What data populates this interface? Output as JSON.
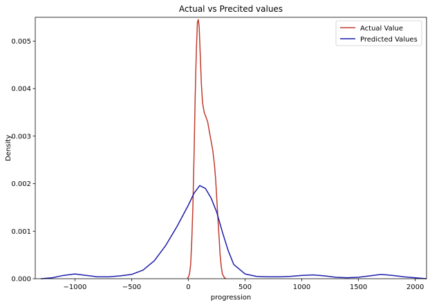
{
  "chart_data": {
    "type": "line",
    "title": "Actual vs Precited values",
    "xlabel": "progression",
    "ylabel": "Density",
    "xlim": [
      -1350,
      2100
    ],
    "ylim": [
      0,
      0.0055
    ],
    "xticks": [
      -1000,
      -500,
      0,
      500,
      1000,
      1500,
      2000
    ],
    "yticks": [
      0,
      0.001,
      0.002,
      0.003,
      0.004,
      0.005
    ],
    "ytick_labels": [
      "0.000",
      "0.001",
      "0.002",
      "0.003",
      "0.004",
      "0.005"
    ],
    "grid": false,
    "legend_position": "top-right",
    "series": [
      {
        "name": "Actual Value",
        "color": "#c0392b",
        "points": [
          [
            -10,
            1e-05
          ],
          [
            0,
            3e-05
          ],
          [
            10,
            0.0001
          ],
          [
            20,
            0.0003
          ],
          [
            30,
            0.0008
          ],
          [
            40,
            0.0015
          ],
          [
            50,
            0.0026
          ],
          [
            60,
            0.0038
          ],
          [
            70,
            0.0048
          ],
          [
            80,
            0.0054
          ],
          [
            88,
            0.00545
          ],
          [
            95,
            0.0053
          ],
          [
            105,
            0.0047
          ],
          [
            115,
            0.0041
          ],
          [
            125,
            0.0037
          ],
          [
            140,
            0.0035
          ],
          [
            155,
            0.0034
          ],
          [
            170,
            0.0033
          ],
          [
            185,
            0.0031
          ],
          [
            200,
            0.0029
          ],
          [
            215,
            0.0027
          ],
          [
            230,
            0.0024
          ],
          [
            240,
            0.0021
          ],
          [
            250,
            0.0017
          ],
          [
            260,
            0.0013
          ],
          [
            270,
            0.0009
          ],
          [
            280,
            0.0005
          ],
          [
            290,
            0.00025
          ],
          [
            300,
            0.0001
          ],
          [
            315,
            3e-05
          ],
          [
            330,
            0.0
          ]
        ]
      },
      {
        "name": "Predicted Values",
        "color": "#1a1aaa",
        "points": [
          [
            -1300,
            0.0
          ],
          [
            -1200,
            2e-05
          ],
          [
            -1100,
            7e-05
          ],
          [
            -1000,
            0.0001
          ],
          [
            -900,
            7e-05
          ],
          [
            -800,
            4e-05
          ],
          [
            -700,
            4e-05
          ],
          [
            -600,
            6e-05
          ],
          [
            -500,
            9e-05
          ],
          [
            -400,
            0.00018
          ],
          [
            -300,
            0.00038
          ],
          [
            -200,
            0.0007
          ],
          [
            -100,
            0.0011
          ],
          [
            0,
            0.00155
          ],
          [
            50,
            0.0018
          ],
          [
            100,
            0.00196
          ],
          [
            150,
            0.0019
          ],
          [
            200,
            0.0017
          ],
          [
            250,
            0.0014
          ],
          [
            300,
            0.00098
          ],
          [
            350,
            0.0006
          ],
          [
            400,
            0.0003
          ],
          [
            500,
            0.0001
          ],
          [
            600,
            5e-05
          ],
          [
            700,
            4e-05
          ],
          [
            800,
            4e-05
          ],
          [
            900,
            5e-05
          ],
          [
            1000,
            7e-05
          ],
          [
            1100,
            8e-05
          ],
          [
            1200,
            6e-05
          ],
          [
            1300,
            3e-05
          ],
          [
            1400,
            2e-05
          ],
          [
            1500,
            3e-05
          ],
          [
            1600,
            6e-05
          ],
          [
            1700,
            9e-05
          ],
          [
            1800,
            7e-05
          ],
          [
            1900,
            4e-05
          ],
          [
            2000,
            2e-05
          ],
          [
            2100,
            0.0
          ]
        ]
      }
    ]
  }
}
